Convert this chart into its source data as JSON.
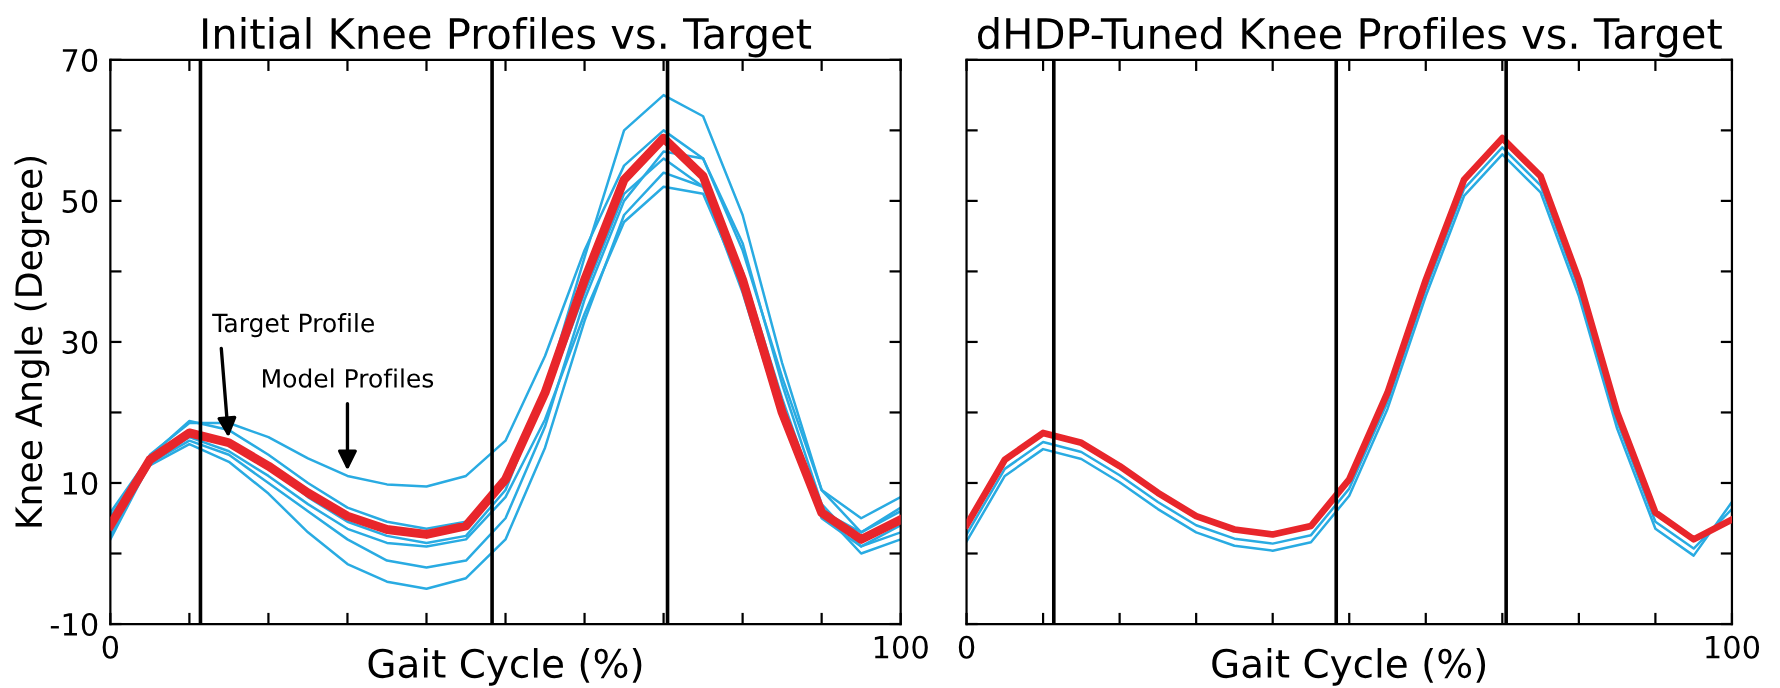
{
  "chart_data": [
    {
      "type": "line",
      "title": "Initial Knee Profiles vs. Target",
      "xlabel": "Gait Cycle (%)",
      "ylabel": "Knee Angle (Degree)",
      "x": [
        0,
        5,
        10,
        15,
        20,
        25,
        30,
        35,
        40,
        45,
        50,
        55,
        60,
        65,
        70,
        75,
        80,
        85,
        90,
        95,
        100
      ],
      "xlim": [
        0,
        100
      ],
      "ylim": [
        -10,
        70
      ],
      "xticks": [
        0,
        {
          "value": 10,
          "label": null
        },
        {
          "value": 20,
          "label": null
        },
        {
          "value": 30,
          "label": null
        },
        {
          "value": 40,
          "label": null
        },
        {
          "value": 50,
          "label": null
        },
        {
          "value": 60,
          "label": null
        },
        {
          "value": 70,
          "label": null
        },
        {
          "value": 80,
          "label": null
        },
        {
          "value": 90,
          "label": null
        },
        100
      ],
      "yticks": [
        -10,
        {
          "value": 0,
          "label": null
        },
        10,
        {
          "value": 20,
          "label": null
        },
        30,
        {
          "value": 40,
          "label": null
        },
        50,
        {
          "value": 60,
          "label": null
        },
        70
      ],
      "grid": false,
      "legend": false,
      "marker": "none",
      "line_style": "solid",
      "series": [
        {
          "color": "#29abe2",
          "values": [
            4.6,
            14,
            18.5,
            18.5,
            16.5,
            13.5,
            11,
            9.8,
            9.5,
            11,
            16,
            28,
            43,
            55,
            60,
            56,
            43,
            25,
            9,
            5,
            8
          ]
        },
        {
          "color": "#29abe2",
          "values": [
            3.2,
            12.5,
            15.5,
            13,
            8.5,
            3,
            -1.5,
            -4,
            -5,
            -3.5,
            2,
            15,
            33,
            48,
            54,
            52,
            40,
            22,
            6,
            0,
            2
          ]
        },
        {
          "color": "#29abe2",
          "values": [
            5.2,
            13.5,
            17.5,
            16,
            12.5,
            8,
            4.5,
            2.5,
            1.5,
            2.5,
            9,
            23,
            42,
            60,
            65,
            62,
            48,
            27,
            9,
            3,
            6.5
          ]
        },
        {
          "color": "#29abe2",
          "values": [
            2.6,
            13,
            16.5,
            14.5,
            11,
            7,
            3.5,
            1.5,
            1,
            2,
            8,
            19,
            34,
            47,
            52,
            51,
            38,
            20,
            5,
            1,
            3
          ]
        },
        {
          "color": "#29abe2",
          "values": [
            5.8,
            13.8,
            18.8,
            17.5,
            14,
            10,
            6.5,
            4.5,
            3.5,
            4.5,
            10.5,
            22,
            37,
            51,
            56,
            52,
            37,
            19,
            6,
            3,
            6
          ]
        },
        {
          "color": "#29abe2",
          "values": [
            2,
            12.8,
            16,
            14,
            10,
            6,
            2,
            -1,
            -2,
            -1,
            5,
            18,
            36,
            50,
            57,
            56,
            44,
            24,
            7,
            1,
            4
          ]
        },
        {
          "color": "#e8262b",
          "values": [
            4,
            13.3,
            17.1,
            15.7,
            12.4,
            8.6,
            5.3,
            3.4,
            2.7,
            3.9,
            10.5,
            22.8,
            38.8,
            53,
            58.9,
            53.5,
            38.8,
            20,
            5.8,
            2,
            4.8
          ]
        }
      ],
      "ref_lines": [
        {
          "axis": "x",
          "value": 11.4,
          "color": "#000000"
        },
        {
          "axis": "x",
          "value": 48.3,
          "color": "#000000"
        },
        {
          "axis": "x",
          "value": 70.5,
          "color": "#000000"
        }
      ],
      "annotations": [
        {
          "text": "Target Profile",
          "x": 15,
          "y": 15.7
        },
        {
          "text": "Model Profiles",
          "x": 30,
          "y": 11
        }
      ]
    },
    {
      "type": "line",
      "title": "dHDP-Tuned Knee Profiles vs. Target",
      "xlabel": "Gait Cycle (%)",
      "x": [
        0,
        5,
        10,
        15,
        20,
        25,
        30,
        35,
        40,
        45,
        50,
        55,
        60,
        65,
        70,
        75,
        80,
        85,
        90,
        95,
        100
      ],
      "xlim": [
        0,
        100
      ],
      "ylim": [
        -10,
        70
      ],
      "xticks": [
        0,
        {
          "value": 10,
          "label": null
        },
        {
          "value": 20,
          "label": null
        },
        {
          "value": 30,
          "label": null
        },
        {
          "value": 40,
          "label": null
        },
        {
          "value": 50,
          "label": null
        },
        {
          "value": 60,
          "label": null
        },
        {
          "value": 70,
          "label": null
        },
        {
          "value": 80,
          "label": null
        },
        {
          "value": 90,
          "label": null
        },
        100
      ],
      "yticks": [
        -10,
        {
          "value": 0,
          "label": null
        },
        10,
        {
          "value": 20,
          "label": null
        },
        30,
        {
          "value": 40,
          "label": null
        },
        50,
        {
          "value": 60,
          "label": null
        },
        70
      ],
      "tick_labels": "x",
      "grid": false,
      "legend": false,
      "marker": "none",
      "line_style": "solid",
      "series": [
        {
          "color": "#29abe2",
          "values": [
            2.7,
            12,
            15.8,
            14.4,
            11.1,
            7.3,
            4,
            2.1,
            1.4,
            2.6,
            9.2,
            21.5,
            37.5,
            51.7,
            57.6,
            52.2,
            37.5,
            18.7,
            4.5,
            0.7,
            6.3
          ]
        },
        {
          "color": "#29abe2",
          "values": [
            1.7,
            11,
            14.8,
            13.4,
            10.1,
            6.3,
            3,
            1.1,
            0.4,
            1.6,
            8.2,
            20.5,
            36.5,
            50.7,
            56.6,
            51.2,
            36.5,
            17.7,
            3.5,
            -0.3,
            7.3
          ]
        },
        {
          "color": "#e8262b",
          "values": [
            4,
            13.3,
            17.1,
            15.7,
            12.4,
            8.6,
            5.3,
            3.4,
            2.7,
            3.9,
            10.5,
            22.8,
            38.8,
            53,
            58.9,
            53.5,
            38.8,
            20,
            5.8,
            2,
            4.8
          ]
        }
      ],
      "ref_lines": [
        {
          "axis": "x",
          "value": 11.4,
          "color": "#000000"
        },
        {
          "axis": "x",
          "value": 48.3,
          "color": "#000000"
        },
        {
          "axis": "x",
          "value": 70.5,
          "color": "#000000"
        }
      ]
    }
  ]
}
